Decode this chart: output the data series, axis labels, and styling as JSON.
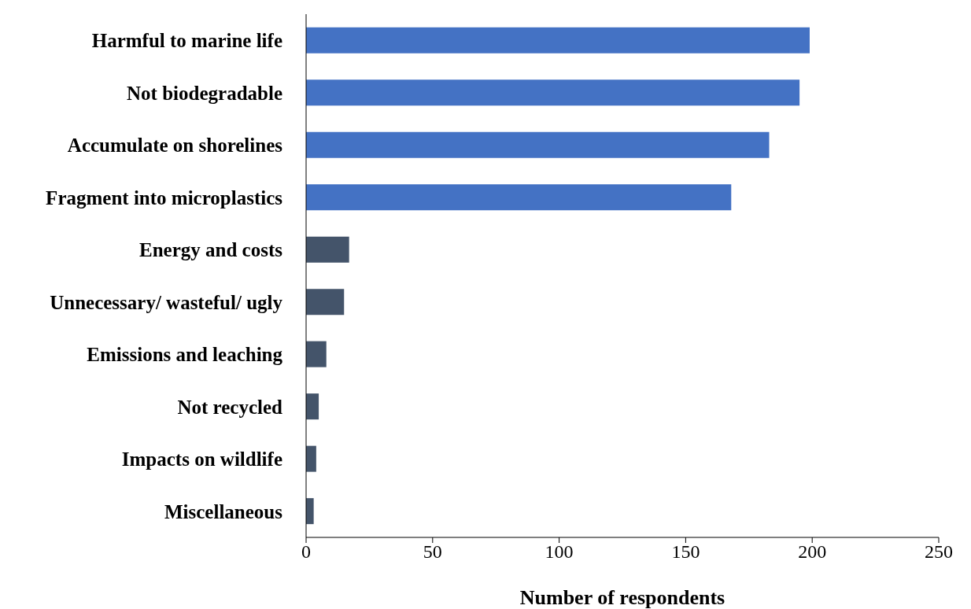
{
  "chart_data": {
    "type": "bar",
    "orientation": "horizontal",
    "xlabel": "Number of respondents",
    "categories": [
      "Harmful to marine life",
      "Not biodegradable",
      "Accumulate on shorelines",
      "Fragment into microplastics",
      "Energy and costs",
      "Unnecessary/ wasteful/ ugly",
      "Emissions and leaching",
      "Not recycled",
      "Impacts on wildlife",
      "Miscellaneous"
    ],
    "values": [
      199,
      195,
      183,
      168,
      17,
      15,
      8,
      5,
      4,
      3
    ],
    "colors": [
      "#4472c4",
      "#4472c4",
      "#4472c4",
      "#4472c4",
      "#44546a",
      "#44546a",
      "#44546a",
      "#44546a",
      "#44546a",
      "#44546a"
    ],
    "xlim": [
      0,
      250
    ],
    "xticks": [
      0,
      50,
      100,
      150,
      200,
      250
    ],
    "grid": false,
    "legend": false
  }
}
